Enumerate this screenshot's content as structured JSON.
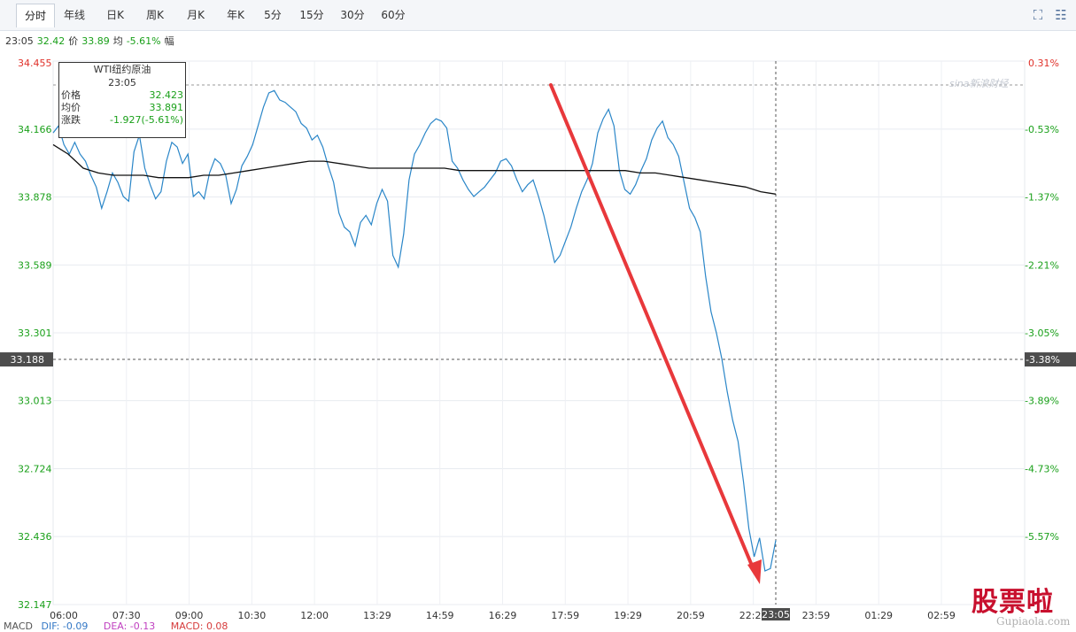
{
  "tabs": [
    "分时",
    "年线",
    "日K",
    "周K",
    "月K",
    "年K",
    "5分",
    "15分",
    "30分",
    "60分"
  ],
  "active_tab": "分时",
  "tools": {
    "fit_icon": "⛶",
    "settings_icon": "☷",
    "fullscreen_icon": "⤢"
  },
  "info": {
    "time": "23:05",
    "price_label": "价",
    "price": "32.42",
    "avg_label": "均",
    "avg": "33.89",
    "range_label": "幅",
    "range": "-5.61%"
  },
  "tooltip": {
    "title": "WTI纽约原油",
    "time": "23:05",
    "rows": [
      {
        "label": "价格",
        "value": "32.423"
      },
      {
        "label": "均价",
        "value": "33.891"
      },
      {
        "label": "涨跌",
        "value": "-1.927(-5.61%)"
      }
    ]
  },
  "macd": {
    "label": "MACD",
    "dif": "DIF: -0.09",
    "dea": "DEA: -0.13",
    "macd": "MACD: 0.08"
  },
  "watermark": {
    "big": "股票啦",
    "small": "Gupiaola.com"
  },
  "sina_mark": "sina新浪财经",
  "colors": {
    "price_line": "#2a86c8",
    "avg_line": "#111111",
    "up": "#e0312a",
    "down": "#1aa01a",
    "arrow": "#e8383b",
    "cursor_bg": "#4d4d4d"
  },
  "chart_data": {
    "type": "line",
    "title": "WTI纽约原油",
    "y_ticks": [
      "34.455",
      "34.166",
      "33.878",
      "33.589",
      "33.301",
      "33.013",
      "32.724",
      "32.436",
      "32.147"
    ],
    "y_values": [
      34.455,
      34.166,
      33.878,
      33.589,
      33.301,
      33.013,
      32.724,
      32.436,
      32.147
    ],
    "pct_ticks": [
      "0.31%",
      "-0.53%",
      "-1.37%",
      "-2.21%",
      "-3.05%",
      "-3.89%",
      "-4.73%",
      "-5.57%"
    ],
    "cursor_price": "33.188",
    "cursor_pct": "-3.38%",
    "x_ticks": [
      "06:00",
      "07:30",
      "09:00",
      "10:30",
      "12:00",
      "13:29",
      "14:59",
      "16:29",
      "17:59",
      "19:29",
      "20:59",
      "22:29",
      "23:05",
      "23:59",
      "01:29",
      "02:59"
    ],
    "ylim": [
      32.147,
      34.455
    ],
    "price": [
      34.15,
      34.18,
      34.1,
      34.06,
      34.11,
      34.06,
      34.03,
      33.97,
      33.92,
      33.83,
      33.9,
      33.98,
      33.94,
      33.88,
      33.86,
      34.07,
      34.14,
      34.0,
      33.93,
      33.87,
      33.9,
      34.03,
      34.11,
      34.09,
      34.02,
      34.06,
      33.88,
      33.9,
      33.87,
      33.98,
      34.04,
      34.02,
      33.97,
      33.85,
      33.91,
      34.01,
      34.05,
      34.1,
      34.18,
      34.26,
      34.32,
      34.33,
      34.29,
      34.28,
      34.26,
      34.24,
      34.19,
      34.17,
      34.12,
      34.14,
      34.09,
      34.01,
      33.94,
      33.81,
      33.75,
      33.73,
      33.67,
      33.77,
      33.8,
      33.76,
      33.85,
      33.91,
      33.86,
      33.63,
      33.58,
      33.72,
      33.95,
      34.06,
      34.1,
      34.15,
      34.19,
      34.21,
      34.2,
      34.17,
      34.03,
      34.0,
      33.95,
      33.91,
      33.88,
      33.9,
      33.92,
      33.95,
      33.98,
      34.03,
      34.04,
      34.01,
      33.95,
      33.9,
      33.93,
      33.95,
      33.88,
      33.8,
      33.7,
      33.6,
      33.63,
      33.69,
      33.75,
      33.83,
      33.9,
      33.95,
      34.02,
      34.15,
      34.21,
      34.25,
      34.18,
      33.99,
      33.91,
      33.89,
      33.93,
      33.99,
      34.04,
      34.12,
      34.17,
      34.2,
      34.13,
      34.1,
      34.05,
      33.94,
      33.83,
      33.79,
      33.73,
      33.54,
      33.39,
      33.3,
      33.19,
      33.05,
      32.93,
      32.84,
      32.67,
      32.47,
      32.35,
      32.43,
      32.29,
      32.3,
      32.42
    ],
    "avg": [
      34.1,
      34.06,
      34.0,
      33.98,
      33.97,
      33.97,
      33.97,
      33.96,
      33.96,
      33.96,
      33.97,
      33.97,
      33.98,
      33.99,
      34.0,
      34.01,
      34.02,
      34.03,
      34.03,
      34.02,
      34.01,
      34.0,
      34.0,
      34.0,
      34.0,
      34.0,
      34.0,
      33.99,
      33.99,
      33.99,
      33.99,
      33.99,
      33.99,
      33.99,
      33.99,
      33.99,
      33.99,
      33.99,
      33.99,
      33.98,
      33.98,
      33.97,
      33.96,
      33.95,
      33.94,
      33.93,
      33.92,
      33.9,
      33.89
    ],
    "arrow": {
      "from": [
        34.23,
        "17:59"
      ],
      "to": [
        32.19,
        "22:29"
      ]
    }
  }
}
